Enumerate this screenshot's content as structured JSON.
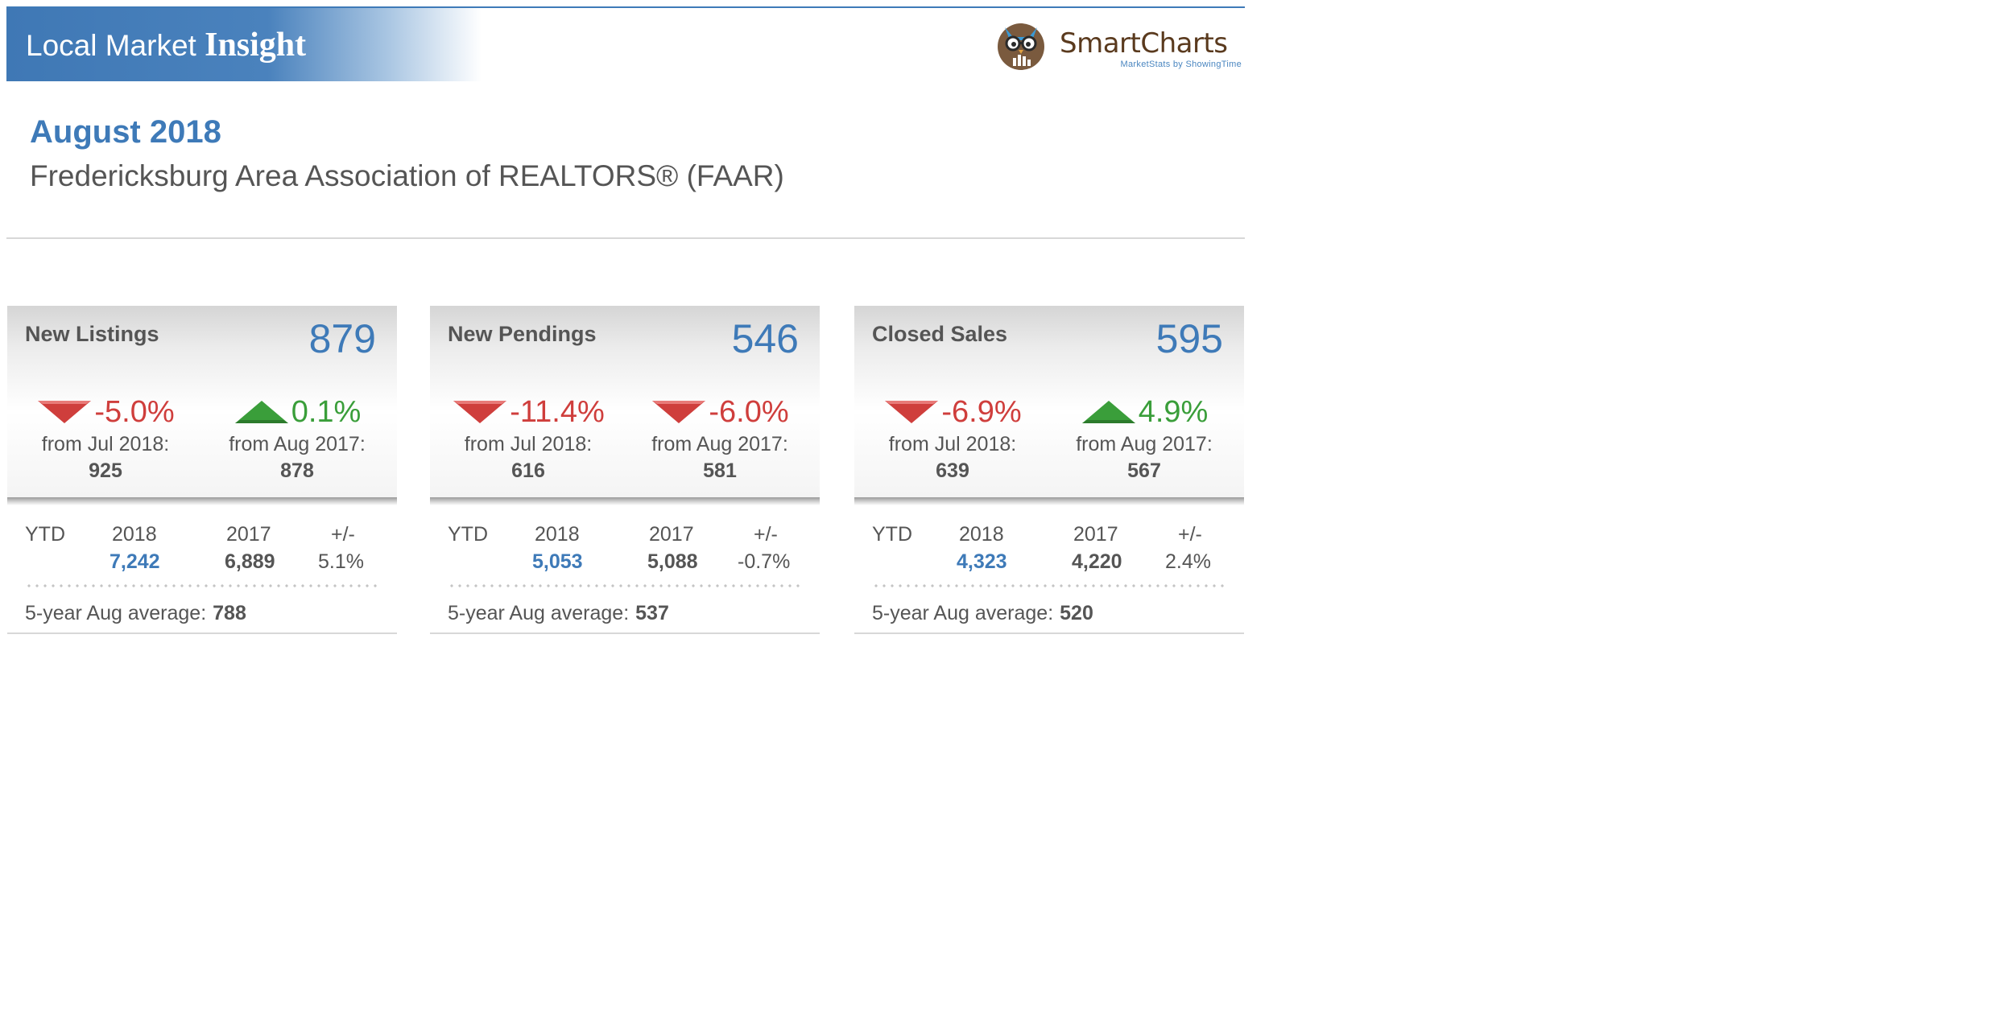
{
  "header": {
    "banner_light": "Local Market ",
    "banner_bold": "Insight",
    "logo_name": "SmartCharts",
    "logo_tagline": "MarketStats by ShowingTime",
    "owl_icon": "owl-logo-icon"
  },
  "report": {
    "date": "August 2018",
    "association": "Fredericksburg Area Association of REALTORS® (FAAR)"
  },
  "colors": {
    "accent_blue": "#3e7ab8",
    "down_red": "#cf3e3c",
    "up_green": "#3a9e3a"
  },
  "cards": [
    {
      "title": "New Listings",
      "value": "879",
      "month_change": {
        "direction": "down",
        "pct": "-5.0%",
        "label": "from Jul 2018:",
        "value": "925"
      },
      "year_change": {
        "direction": "up",
        "pct": "0.1%",
        "label": "from Aug 2017:",
        "value": "878"
      },
      "ytd": {
        "label": "YTD",
        "year1": "2018",
        "year2": "2017",
        "diff_label": "+/-",
        "val1": "7,242",
        "val2": "6,889",
        "diff": "5.1%"
      },
      "avg_label": "5-year Aug average:",
      "avg_value": "788"
    },
    {
      "title": "New Pendings",
      "value": "546",
      "month_change": {
        "direction": "down",
        "pct": "-11.4%",
        "label": "from Jul 2018:",
        "value": "616"
      },
      "year_change": {
        "direction": "down",
        "pct": "-6.0%",
        "label": "from Aug 2017:",
        "value": "581"
      },
      "ytd": {
        "label": "YTD",
        "year1": "2018",
        "year2": "2017",
        "diff_label": "+/-",
        "val1": "5,053",
        "val2": "5,088",
        "diff": "-0.7%"
      },
      "avg_label": "5-year Aug average:",
      "avg_value": "537"
    },
    {
      "title": "Closed Sales",
      "value": "595",
      "month_change": {
        "direction": "down",
        "pct": "-6.9%",
        "label": "from Jul 2018:",
        "value": "639"
      },
      "year_change": {
        "direction": "up",
        "pct": "4.9%",
        "label": "from Aug 2017:",
        "value": "567"
      },
      "ytd": {
        "label": "YTD",
        "year1": "2018",
        "year2": "2017",
        "diff_label": "+/-",
        "val1": "4,323",
        "val2": "4,220",
        "diff": "2.4%"
      },
      "avg_label": "5-year Aug average:",
      "avg_value": "520"
    }
  ]
}
